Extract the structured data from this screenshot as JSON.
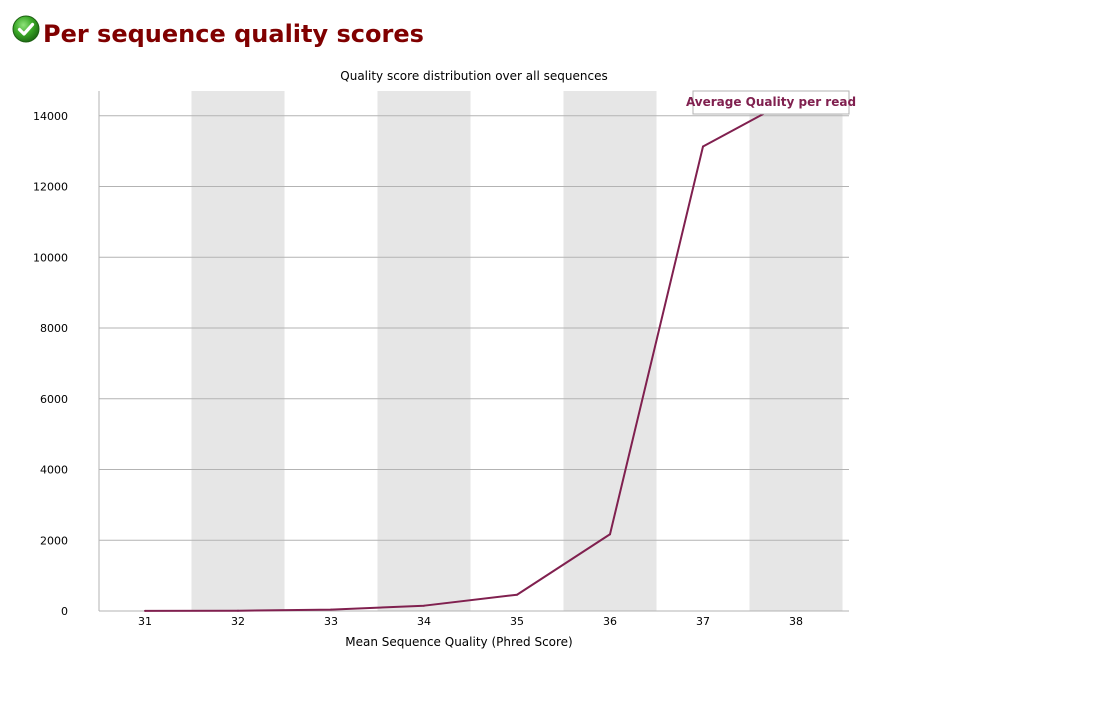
{
  "page": {
    "title": "Per sequence quality scores",
    "status_icon": "check-circle-icon",
    "status": "pass"
  },
  "colors": {
    "title": "#800000",
    "series": "#80204f",
    "band": "#e6e6e6",
    "grid": "#b3b3b3",
    "icon_green": "#2f9e1f"
  },
  "chart_data": {
    "type": "line",
    "title": "Quality score distribution over all sequences",
    "xlabel": "Mean Sequence Quality (Phred Score)",
    "ylabel": "",
    "x": [
      31,
      32,
      33,
      34,
      35,
      36,
      37,
      38
    ],
    "xlim": [
      31,
      38
    ],
    "ylim": [
      0,
      14700
    ],
    "yticks": [
      0,
      2000,
      4000,
      6000,
      8000,
      10000,
      12000,
      14000
    ],
    "grid": true,
    "alternating_bands": true,
    "legend_position": "top-right",
    "series": [
      {
        "name": "Average Quality per read",
        "values": [
          3,
          8,
          40,
          150,
          460,
          2170,
          13130,
          14550
        ]
      }
    ]
  }
}
